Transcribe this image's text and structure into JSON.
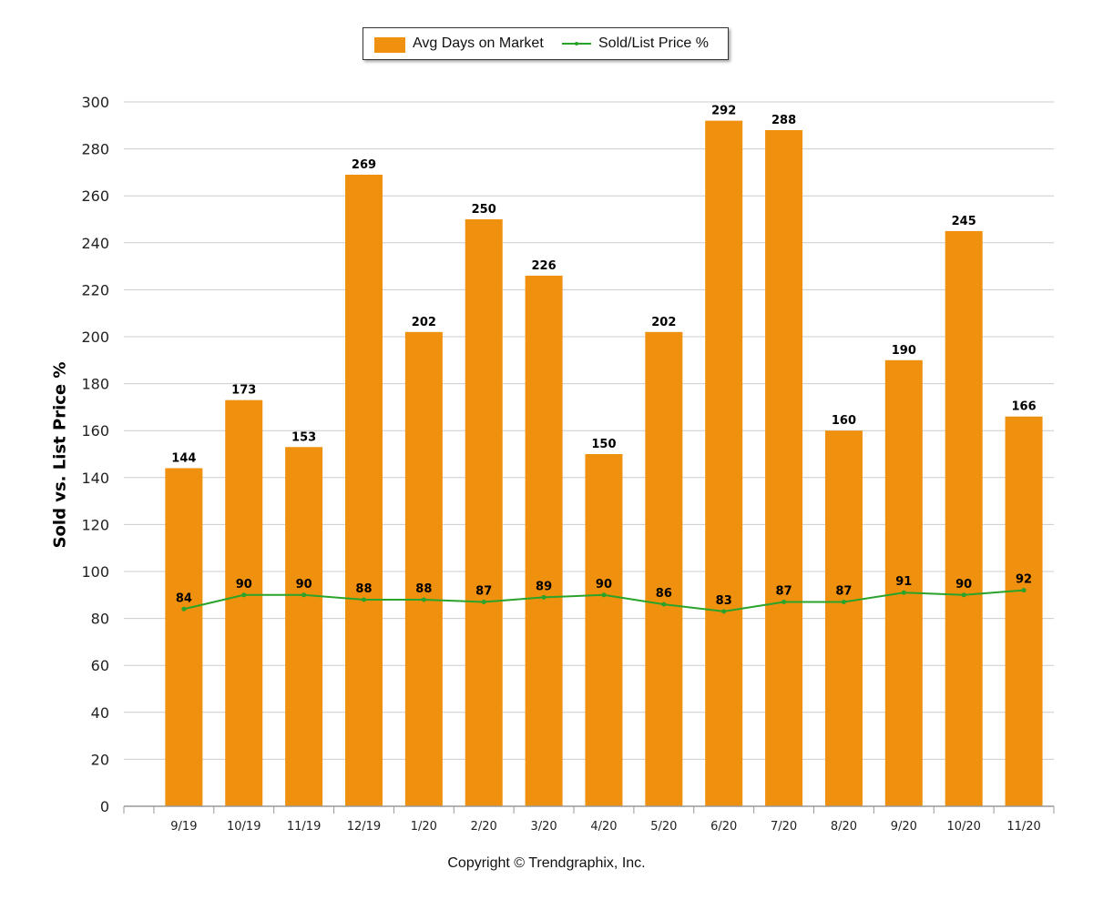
{
  "legend": {
    "bar_label": "Avg Days on Market",
    "line_label": "Sold/List Price %"
  },
  "copyright": "Copyright © Trendgraphix, Inc.",
  "colors": {
    "bar": "#f0900f",
    "line": "#29a329",
    "grid": "#cccccc",
    "axis": "#999999",
    "text": "#000000"
  },
  "chart_data": {
    "type": "bar",
    "title": "",
    "xlabel": "",
    "ylabel": "Sold vs. List Price %",
    "ylim": [
      0,
      300
    ],
    "yticks": [
      0,
      20,
      40,
      60,
      80,
      100,
      120,
      140,
      160,
      180,
      200,
      220,
      240,
      260,
      280,
      300
    ],
    "grid": true,
    "legend_position": "top-center",
    "categories": [
      "9/19",
      "10/19",
      "11/19",
      "12/19",
      "1/20",
      "2/20",
      "3/20",
      "4/20",
      "5/20",
      "6/20",
      "7/20",
      "8/20",
      "9/20",
      "10/20",
      "11/20"
    ],
    "series": [
      {
        "name": "Avg Days on Market",
        "type": "bar",
        "values": [
          144,
          173,
          153,
          269,
          202,
          250,
          226,
          150,
          202,
          292,
          288,
          160,
          190,
          245,
          166
        ]
      },
      {
        "name": "Sold/List Price %",
        "type": "line",
        "values": [
          84,
          90,
          90,
          88,
          88,
          87,
          89,
          90,
          86,
          83,
          87,
          87,
          91,
          90,
          92
        ]
      }
    ]
  }
}
